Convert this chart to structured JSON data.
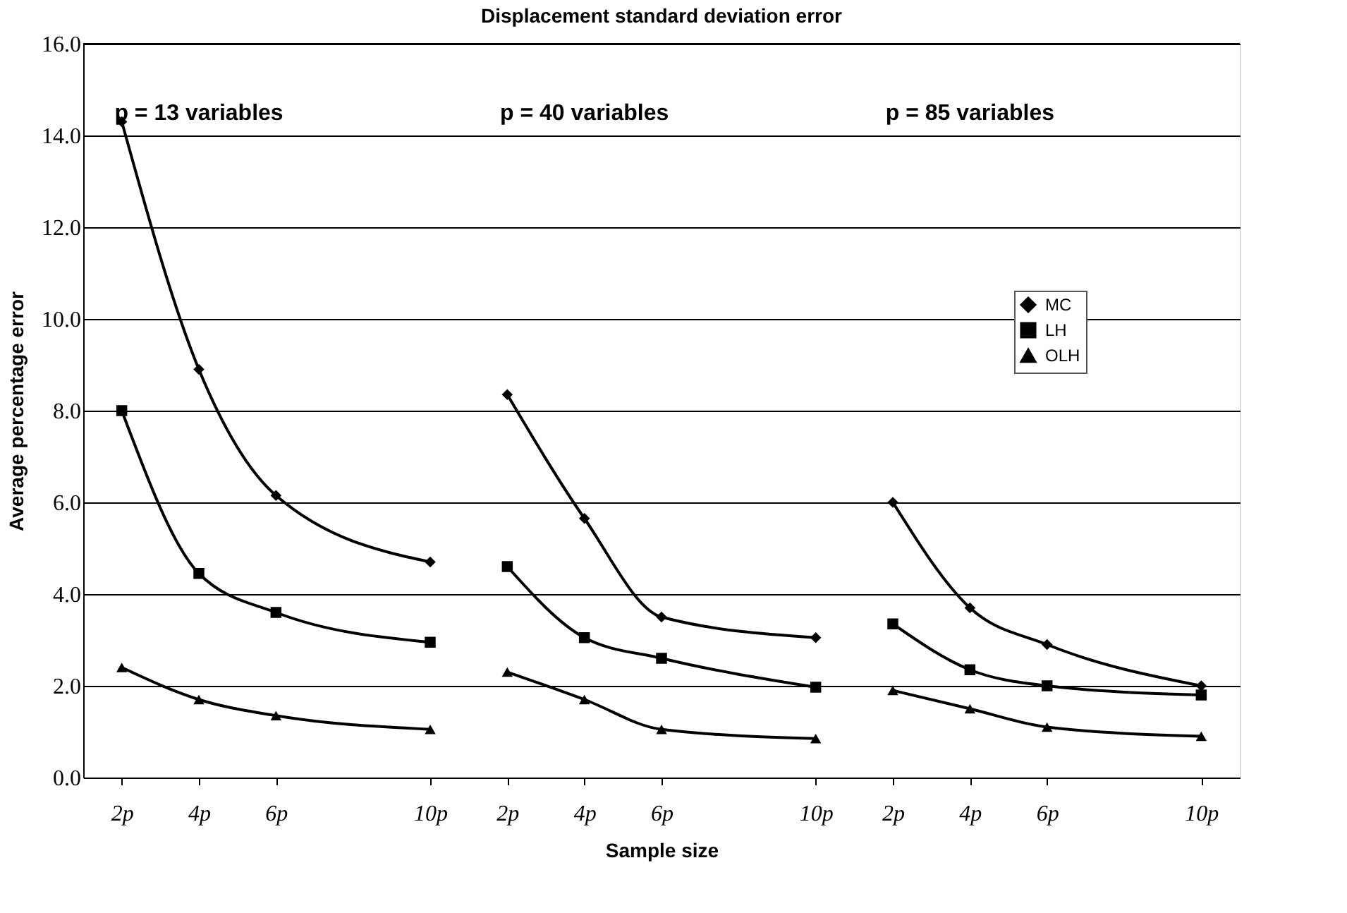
{
  "chart_data": {
    "type": "line",
    "title": "Displacement standard deviation error",
    "xlabel": "Sample size",
    "ylabel": "Average percentage error",
    "categories": [
      "2p",
      "4p",
      "6p",
      null,
      "10p",
      "2p",
      "4p",
      "6p",
      null,
      "10p",
      "2p",
      "4p",
      "6p",
      null,
      "10p"
    ],
    "series": [
      {
        "name": "MC",
        "color": "#000000",
        "marker": "diamond",
        "values": [
          14.3,
          8.9,
          6.15,
          null,
          4.7,
          8.35,
          5.65,
          3.5,
          null,
          3.05,
          6.0,
          3.7,
          2.9,
          null,
          2.0
        ]
      },
      {
        "name": "LH",
        "color": "#000000",
        "marker": "square",
        "values": [
          8.0,
          4.45,
          3.6,
          null,
          2.95,
          4.6,
          3.05,
          2.6,
          null,
          1.97,
          3.35,
          2.35,
          2.0,
          null,
          1.8
        ]
      },
      {
        "name": "OLH",
        "color": "#000000",
        "marker": "triangle",
        "values": [
          2.4,
          1.7,
          1.35,
          null,
          1.05,
          2.3,
          1.7,
          1.05,
          null,
          0.85,
          1.9,
          1.5,
          1.1,
          null,
          0.9
        ]
      }
    ],
    "ylim": [
      0,
      16
    ],
    "yticks": [
      {
        "value": 0,
        "label": "0.0"
      },
      {
        "value": 2,
        "label": "2.0"
      },
      {
        "value": 4,
        "label": "4.0"
      },
      {
        "value": 6,
        "label": "6.0"
      },
      {
        "value": 8,
        "label": "8.0"
      },
      {
        "value": 10,
        "label": "10.0"
      },
      {
        "value": 12,
        "label": "12.0"
      },
      {
        "value": 14,
        "label": "14.0"
      },
      {
        "value": 16,
        "label": "16.0"
      }
    ],
    "annotations": [
      "p = 13 variables",
      "p = 40 variables",
      "p = 85 variables"
    ],
    "grid": "y",
    "legend": "right",
    "line_style": "solid"
  }
}
